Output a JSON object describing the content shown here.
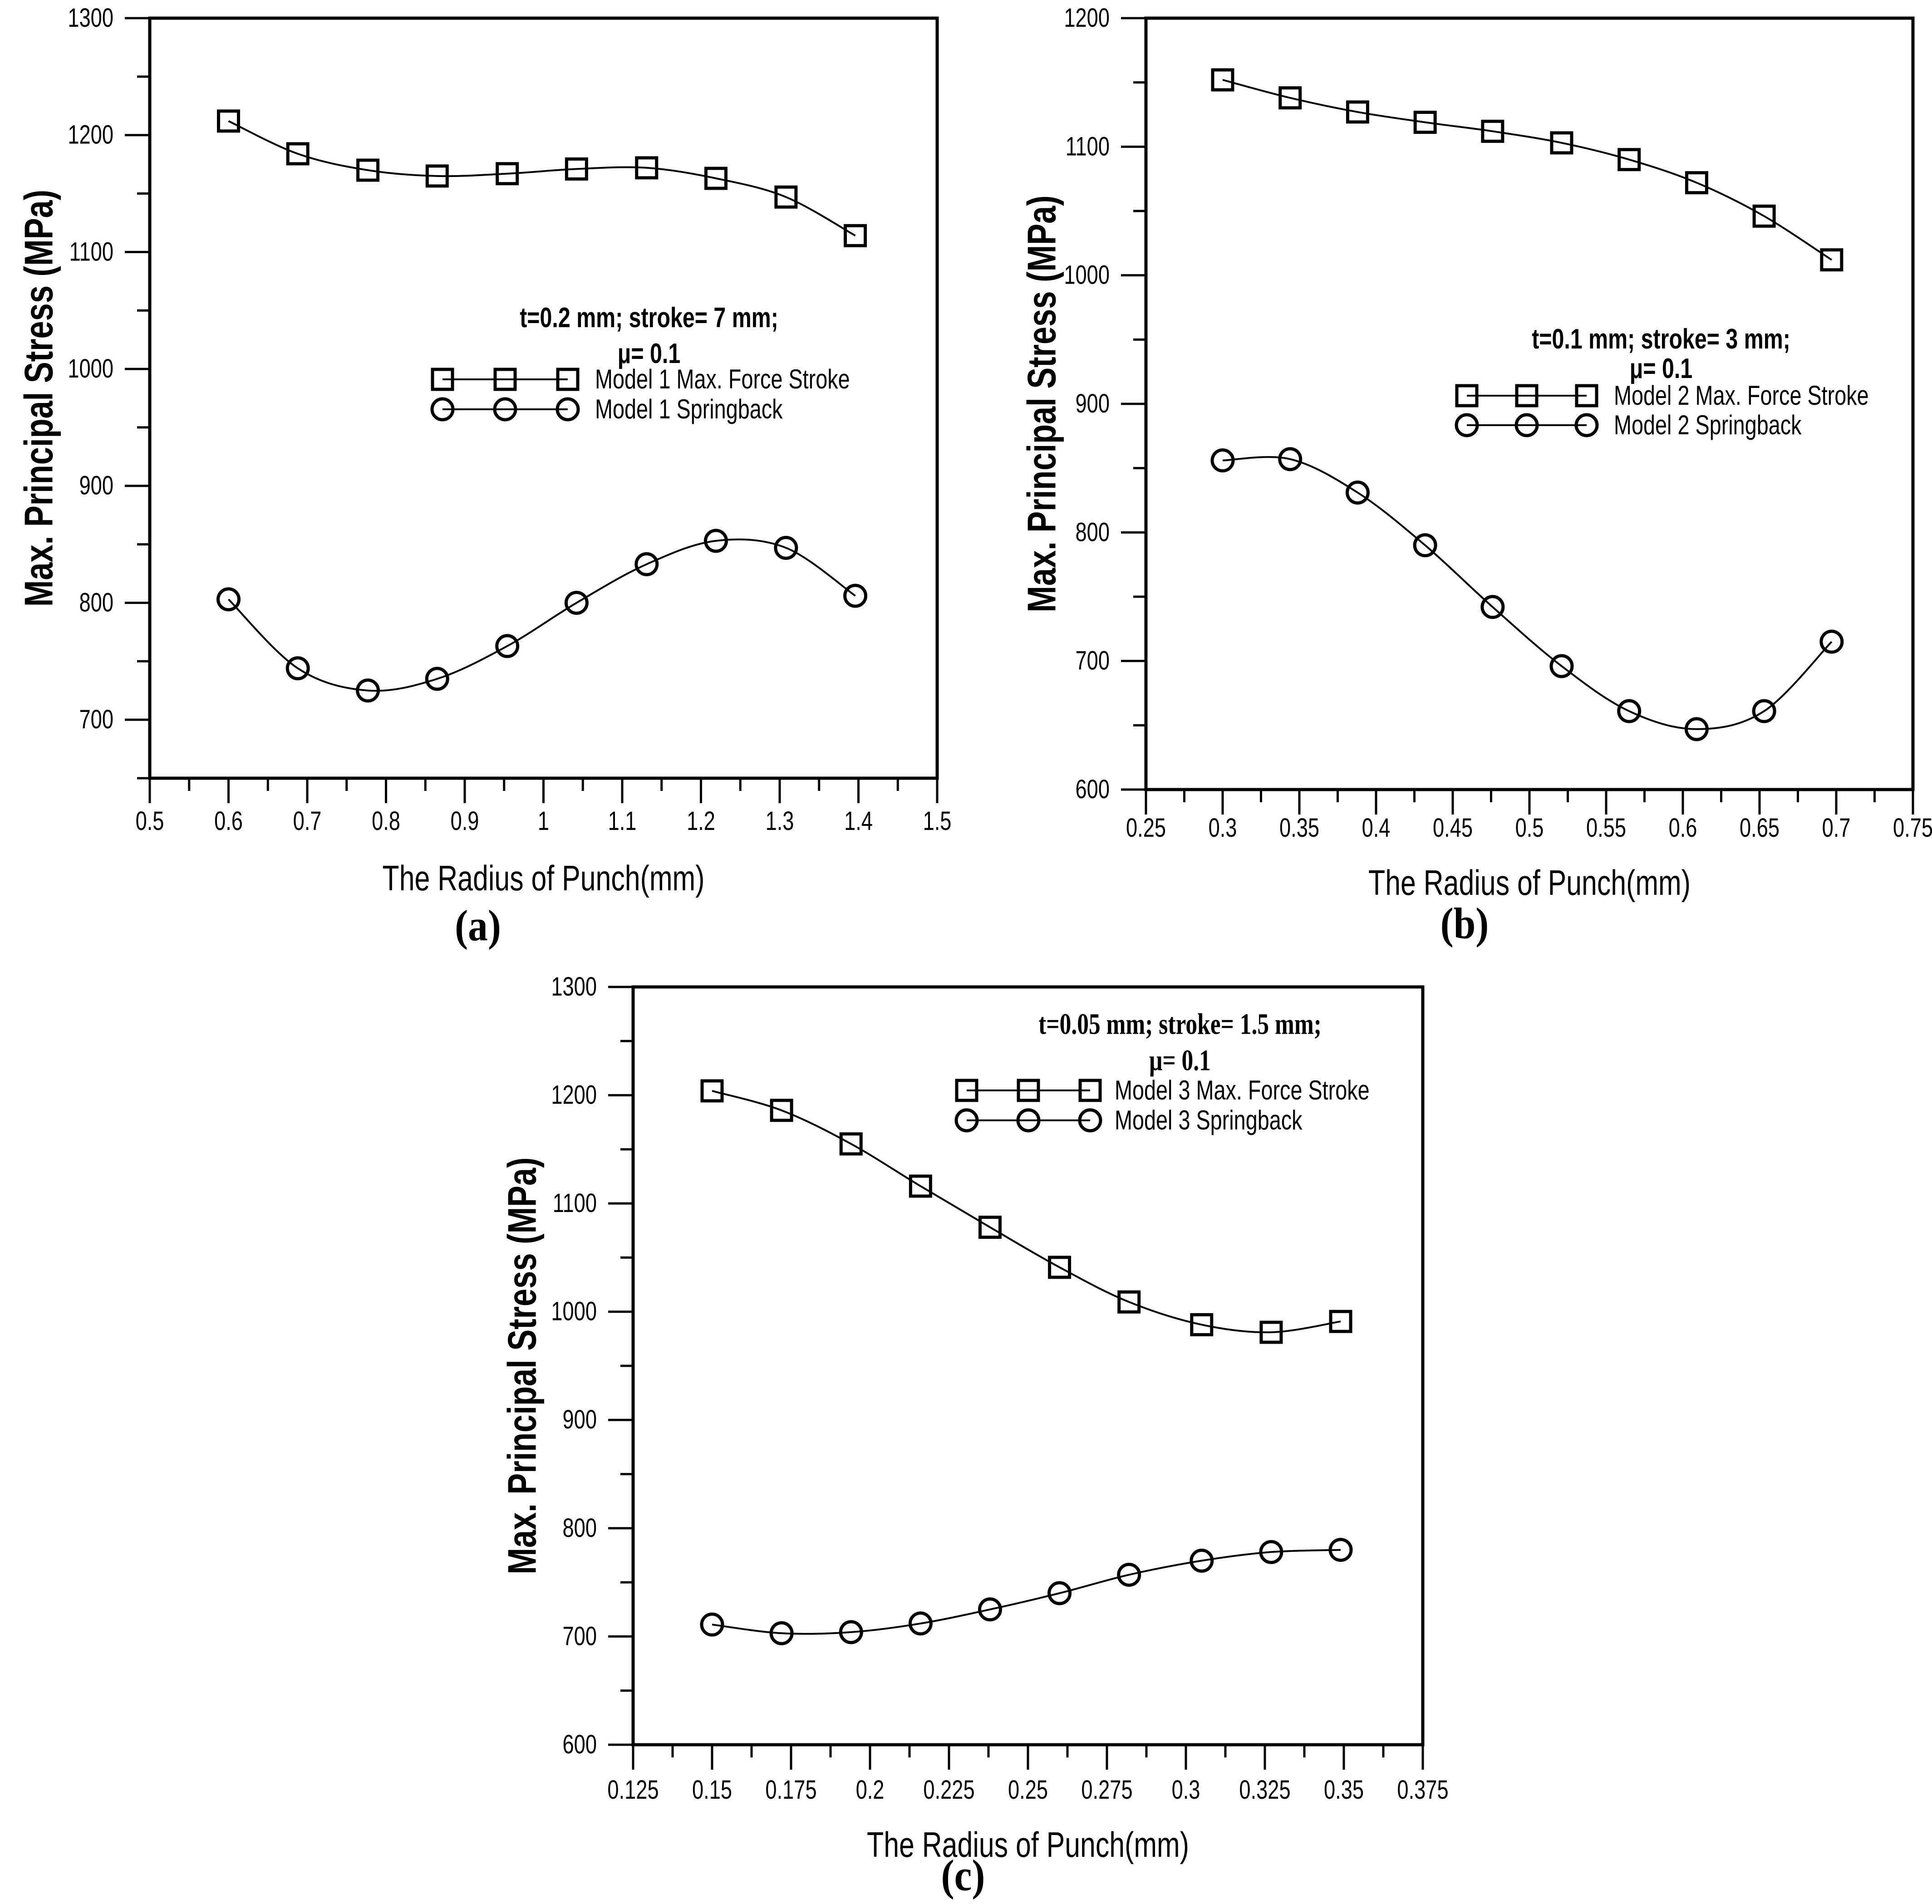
{
  "figure": {
    "background_color": "#ffffff",
    "foreground_color": "#000000",
    "panel_labels": [
      "(a)",
      "(b)",
      "(c)"
    ]
  },
  "chart_data": [
    {
      "type": "line",
      "panel": "a",
      "panel_label": "(a)",
      "legend_title_line1": "t=0.2 mm; stroke= 7 mm;",
      "legend_title_line2": "μ= 0.1",
      "legend_title_style": "sans",
      "xlabel": "The Radius of Punch(mm)",
      "ylabel": "Max. Principal Stress (MPa)",
      "xlim": [
        0.5,
        1.5
      ],
      "ylim": [
        650,
        1300
      ],
      "x_major_ticks": [
        0.5,
        0.6,
        0.7,
        0.8,
        0.9,
        1,
        1.1,
        1.2,
        1.3,
        1.4,
        1.5
      ],
      "x_tick_labels": [
        "0.5",
        "0.6",
        "0.7",
        "0.8",
        "0.9",
        "1",
        "1.1",
        "1.2",
        "1.3",
        "1.4",
        "1.5"
      ],
      "x_minor_ticks": [
        0.55,
        0.65,
        0.75,
        0.85,
        0.95,
        1.05,
        1.15,
        1.25,
        1.35,
        1.45
      ],
      "y_major_ticks": [
        700,
        800,
        900,
        1000,
        1100,
        1200,
        1300
      ],
      "y_tick_labels": [
        "700",
        "800",
        "900",
        "1000",
        "1100",
        "1200",
        "1300"
      ],
      "y_minor_ticks": [
        650,
        750,
        850,
        950,
        1050,
        1150,
        1250
      ],
      "grid": false,
      "legend_position": "inside-center-right",
      "series": [
        {
          "name": "Model 1  Max. Force Stroke",
          "marker": "square",
          "x": [
            0.6,
            0.688,
            0.777,
            0.865,
            0.954,
            1.042,
            1.131,
            1.219,
            1.308,
            1.396
          ],
          "y": [
            1212,
            1184,
            1170,
            1165,
            1167,
            1171,
            1172,
            1163,
            1147,
            1114
          ]
        },
        {
          "name": "Model 1  Springback",
          "marker": "circle",
          "x": [
            0.6,
            0.688,
            0.777,
            0.865,
            0.954,
            1.042,
            1.131,
            1.219,
            1.308,
            1.396
          ],
          "y": [
            803,
            744,
            725,
            735,
            763,
            800,
            833,
            853,
            847,
            806
          ]
        }
      ]
    },
    {
      "type": "line",
      "panel": "b",
      "panel_label": "(b)",
      "legend_title_line1": "t=0.1 mm; stroke= 3 mm;",
      "legend_title_line2": "μ= 0.1",
      "legend_title_style": "sans",
      "xlabel": "The Radius of Punch(mm)",
      "ylabel": "Max. Principal Stress (MPa)",
      "xlim": [
        0.25,
        0.75
      ],
      "ylim": [
        600,
        1200
      ],
      "x_major_ticks": [
        0.25,
        0.3,
        0.35,
        0.4,
        0.45,
        0.5,
        0.55,
        0.6,
        0.65,
        0.7,
        0.75
      ],
      "x_tick_labels": [
        "0.25",
        "0.3",
        "0.35",
        "0.4",
        "0.45",
        "0.5",
        "0.55",
        "0.6",
        "0.65",
        "0.7",
        "0.75"
      ],
      "x_minor_ticks": [
        0.275,
        0.325,
        0.375,
        0.425,
        0.475,
        0.525,
        0.575,
        0.625,
        0.675,
        0.725
      ],
      "y_major_ticks": [
        600,
        700,
        800,
        900,
        1000,
        1100,
        1200
      ],
      "y_tick_labels": [
        "600",
        "700",
        "800",
        "900",
        "1000",
        "1100",
        "1200"
      ],
      "y_minor_ticks": [
        650,
        750,
        850,
        950,
        1050,
        1150
      ],
      "grid": false,
      "legend_position": "inside-center-right",
      "series": [
        {
          "name": "Model 2  Max. Force Stroke",
          "marker": "square",
          "x": [
            0.3,
            0.344,
            0.388,
            0.432,
            0.476,
            0.521,
            0.565,
            0.609,
            0.653,
            0.697
          ],
          "y": [
            1152,
            1138,
            1127,
            1119,
            1112,
            1103,
            1090,
            1072,
            1046,
            1012
          ]
        },
        {
          "name": "Model 2  Springback",
          "marker": "circle",
          "x": [
            0.3,
            0.344,
            0.388,
            0.432,
            0.476,
            0.521,
            0.565,
            0.609,
            0.653,
            0.697
          ],
          "y": [
            856,
            857,
            831,
            790,
            742,
            696,
            661,
            647,
            661,
            715
          ]
        }
      ]
    },
    {
      "type": "line",
      "panel": "c",
      "panel_label": "(c)",
      "legend_title_line1": "t=0.05 mm; stroke= 1.5 mm;",
      "legend_title_line2": "μ= 0.1",
      "legend_title_style": "serif",
      "xlabel": "The Radius of Punch(mm)",
      "ylabel": "Max. Principal Stress (MPa)",
      "xlim": [
        0.125,
        0.375
      ],
      "ylim": [
        600,
        1300
      ],
      "x_major_ticks": [
        0.125,
        0.15,
        0.175,
        0.2,
        0.225,
        0.25,
        0.275,
        0.3,
        0.325,
        0.35,
        0.375
      ],
      "x_tick_labels": [
        "0.125",
        "0.15",
        "0.175",
        "0.2",
        "0.225",
        "0.25",
        "0.275",
        "0.3",
        "0.325",
        "0.35",
        "0.375"
      ],
      "x_minor_ticks": [
        0.1375,
        0.1625,
        0.1875,
        0.2125,
        0.2375,
        0.2625,
        0.2875,
        0.3125,
        0.3375,
        0.3625
      ],
      "y_major_ticks": [
        600,
        700,
        800,
        900,
        1000,
        1100,
        1200,
        1300
      ],
      "y_tick_labels": [
        "600",
        "700",
        "800",
        "900",
        "1000",
        "1100",
        "1200",
        "1300"
      ],
      "y_minor_ticks": [
        650,
        750,
        850,
        950,
        1050,
        1150,
        1250
      ],
      "grid": false,
      "legend_position": "inside-top-right",
      "series": [
        {
          "name": "Model 3  Max. Force Stroke",
          "marker": "square",
          "x": [
            0.15,
            0.172,
            0.194,
            0.216,
            0.238,
            0.26,
            0.282,
            0.305,
            0.327,
            0.349
          ],
          "y": [
            1204,
            1186,
            1155,
            1116,
            1078,
            1041,
            1009,
            988,
            981,
            991
          ]
        },
        {
          "name": "Model 3  Springback",
          "marker": "circle",
          "x": [
            0.15,
            0.172,
            0.194,
            0.216,
            0.238,
            0.26,
            0.282,
            0.305,
            0.327,
            0.349
          ],
          "y": [
            711,
            703,
            704,
            712,
            725,
            740,
            757,
            770,
            778,
            780
          ]
        }
      ]
    }
  ]
}
